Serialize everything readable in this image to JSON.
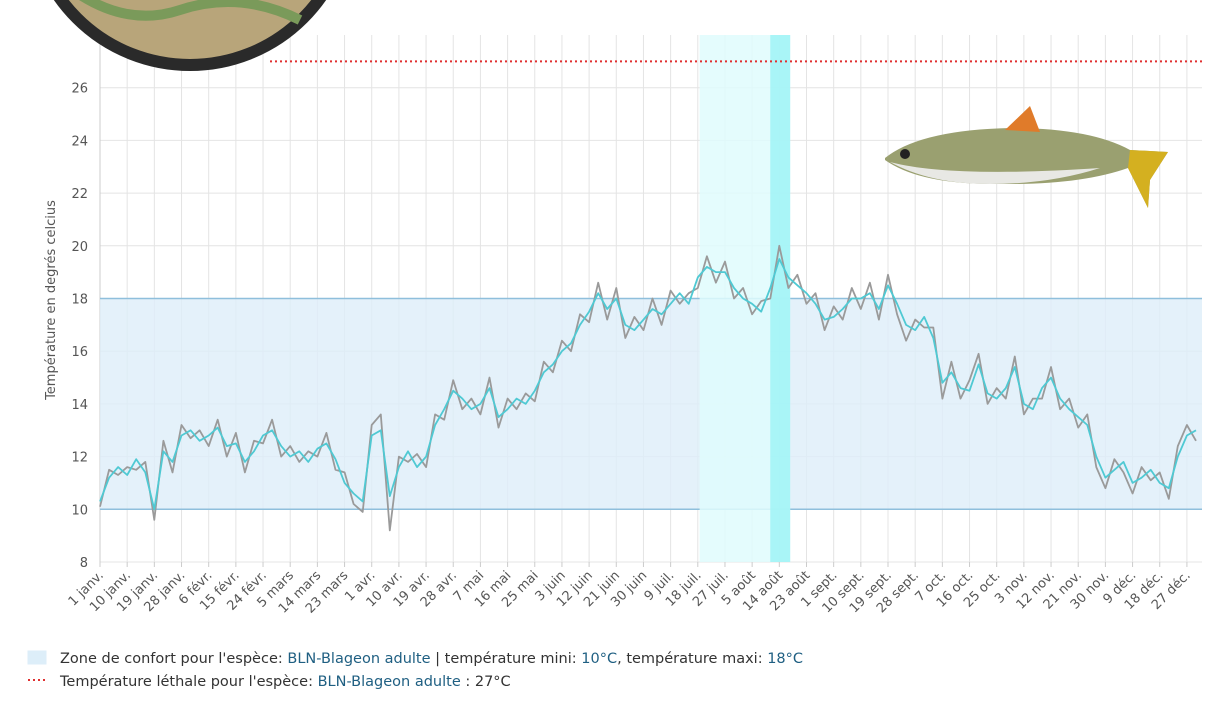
{
  "chart_data": {
    "type": "line",
    "y_label": "Température en degrés celcius",
    "ylim": [
      8,
      28
    ],
    "yticks": [
      8,
      10,
      12,
      14,
      16,
      18,
      20,
      22,
      24,
      26
    ],
    "grid": true,
    "categories": [
      "1 janv.",
      null,
      null,
      "10 janv.",
      null,
      null,
      "19 janv.",
      null,
      null,
      "28 janv.",
      null,
      null,
      "6 févr.",
      null,
      null,
      "15 févr.",
      null,
      null,
      "24 févr.",
      null,
      null,
      "5 mars",
      null,
      null,
      "14 mars",
      null,
      null,
      "23 mars",
      null,
      null,
      "1 avr.",
      null,
      null,
      "10 avr.",
      null,
      null,
      "19 avr.",
      null,
      null,
      "28 avr.",
      null,
      null,
      "7 mai",
      null,
      null,
      "16 mai",
      null,
      null,
      "25 mai",
      null,
      null,
      "3 juin",
      null,
      null,
      "12 juin",
      null,
      null,
      "21 juin",
      null,
      null,
      "30 juin",
      null,
      null,
      "9 juil.",
      null,
      null,
      "18 juil.",
      null,
      null,
      "27 juil.",
      null,
      null,
      "5 août",
      null,
      null,
      "14 août",
      null,
      null,
      "23 août",
      null,
      null,
      "1 sept.",
      null,
      null,
      "10 sept.",
      null,
      null,
      "19 sept.",
      null,
      null,
      "28 sept.",
      null,
      null,
      "7 oct.",
      null,
      null,
      "16 oct.",
      null,
      null,
      "25 oct.",
      null,
      null,
      "3 nov.",
      null,
      null,
      "12 nov.",
      null,
      null,
      "21 nov.",
      null,
      null,
      "30 nov.",
      null,
      null,
      "9 déc.",
      null,
      null,
      "18 déc.",
      null,
      null,
      "27 déc.",
      null
    ],
    "series": [
      {
        "color": "#9a9a9a",
        "values": [
          10.1,
          11.5,
          11.3,
          11.6,
          11.5,
          11.8,
          9.6,
          12.6,
          11.4,
          13.2,
          12.7,
          13,
          12.4,
          13.4,
          12,
          12.9,
          11.4,
          12.6,
          12.5,
          13.4,
          12,
          12.4,
          11.8,
          12.2,
          12,
          12.9,
          11.5,
          11.4,
          10.2,
          9.9,
          13.2,
          13.6,
          9.2,
          12,
          11.8,
          12.1,
          11.6,
          13.6,
          13.4,
          14.9,
          13.8,
          14.2,
          13.6,
          15,
          13.1,
          14.2,
          13.8,
          14.4,
          14.1,
          15.6,
          15.2,
          16.4,
          16,
          17.4,
          17.1,
          18.6,
          17.2,
          18.4,
          16.5,
          17.3,
          16.8,
          18,
          17,
          18.3,
          17.8,
          18.2,
          18.4,
          19.6,
          18.6,
          19.4,
          18,
          18.4,
          17.4,
          17.9,
          18,
          20,
          18.4,
          18.9,
          17.8,
          18.2,
          16.8,
          17.7,
          17.2,
          18.4,
          17.6,
          18.6,
          17.2,
          18.9,
          17.4,
          16.4,
          17.2,
          16.9,
          16.9,
          14.2,
          15.6,
          14.2,
          14.9,
          15.9,
          14,
          14.6,
          14.2,
          15.8,
          13.6,
          14.2,
          14.2,
          15.4,
          13.8,
          14.2,
          13.1,
          13.6,
          11.6,
          10.8,
          11.9,
          11.4,
          10.6,
          11.6,
          11.1,
          11.4,
          10.4,
          12.4,
          13.2,
          12.6
        ]
      },
      {
        "color": "#4fc9d3",
        "values": [
          10.3,
          11.2,
          11.6,
          11.3,
          11.9,
          11.4,
          10,
          12.2,
          11.8,
          12.8,
          13,
          12.6,
          12.8,
          13.1,
          12.4,
          12.5,
          11.8,
          12.2,
          12.8,
          13,
          12.4,
          12,
          12.2,
          11.8,
          12.3,
          12.5,
          11.9,
          11,
          10.6,
          10.3,
          12.8,
          13,
          10.5,
          11.6,
          12.2,
          11.6,
          12,
          13.2,
          13.8,
          14.5,
          14.2,
          13.8,
          14,
          14.6,
          13.5,
          13.8,
          14.2,
          14,
          14.5,
          15.2,
          15.5,
          16,
          16.3,
          17,
          17.5,
          18.2,
          17.6,
          18,
          17,
          16.8,
          17.2,
          17.6,
          17.4,
          17.8,
          18.2,
          17.8,
          18.8,
          19.2,
          19,
          19,
          18.4,
          18,
          17.8,
          17.5,
          18.4,
          19.5,
          18.8,
          18.5,
          18.2,
          17.8,
          17.2,
          17.3,
          17.6,
          18,
          18,
          18.2,
          17.6,
          18.5,
          17.8,
          17,
          16.8,
          17.3,
          16.5,
          14.8,
          15.2,
          14.6,
          14.5,
          15.5,
          14.4,
          14.2,
          14.6,
          15.4,
          14,
          13.8,
          14.6,
          15,
          14.2,
          13.8,
          13.5,
          13.2,
          12,
          11.2,
          11.5,
          11.8,
          11,
          11.2,
          11.5,
          11,
          10.8,
          12,
          12.8,
          13
        ]
      }
    ],
    "comfort_zone": {
      "min": 10,
      "max": 18,
      "color": "#ddeef9",
      "border": "#8fbfdc"
    },
    "lethal": {
      "value": 27,
      "color": "#e03030"
    },
    "highlights": [
      {
        "from": 66.2,
        "to": 76.2,
        "color": "#dffcfd"
      },
      {
        "from": 74,
        "to": 76.2,
        "color": "#9ff3f6"
      }
    ],
    "legend": [
      {
        "parts": [
          "Zone de confort pour l'espèce: ",
          "BLN-Blageon adulte",
          " | température mini: ",
          "10°C",
          ", température maxi: ",
          "18°C"
        ]
      },
      {
        "parts": [
          "Température léthale pour l'espèce: ",
          "BLN-Blageon adulte",
          " : 27°C"
        ]
      }
    ]
  }
}
